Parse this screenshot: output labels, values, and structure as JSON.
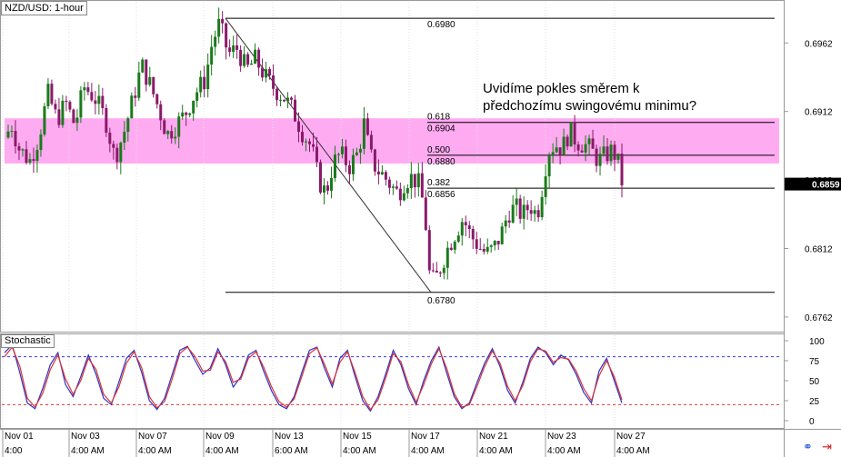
{
  "chart_data": [
    {
      "type": "candlestick",
      "title": "NZD/USD: 1-hour",
      "ylim": [
        0.6752,
        0.6992
      ],
      "y_ticks": [
        "0.6962",
        "0.6912",
        "0.6862",
        "0.6812",
        "0.6762"
      ],
      "y_tick_values": [
        0.6962,
        0.6912,
        0.6862,
        0.6812,
        0.6762
      ],
      "current_price": "0.6859",
      "current_value": 0.6859,
      "x_ticks_row1": [
        "Nov 01",
        "Nov 03",
        "Nov 07",
        "Nov 09",
        "Nov 13",
        "Nov 15",
        "Nov 17",
        "Nov 21",
        "Nov 23",
        "Nov 27"
      ],
      "x_ticks_row2": [
        "4:00",
        "4:00 AM",
        "4:00 AM",
        "4:00 AM",
        "6:00 AM",
        "4:00 AM",
        "4:00 AM",
        "4:00 AM",
        "4:00 AM",
        "4:00 AM"
      ],
      "colors": {
        "up": "#1a7a1a",
        "down": "#8a1a6a",
        "zone": "#ff9cf0"
      },
      "fibonacci": {
        "high": "0.6980",
        "low": "0.6780",
        "high_value": 0.698,
        "low_value": 0.678,
        "levels": [
          {
            "ratio": "0.618",
            "price": "0.6904",
            "value": 0.6904
          },
          {
            "ratio": "0.500",
            "price": "0.6880",
            "value": 0.688
          },
          {
            "ratio": "0.382",
            "price": "0.6856",
            "value": 0.6856
          }
        ]
      },
      "resistance_zone": [
        0.6874,
        0.6907
      ],
      "annotation": [
        "Uvidíme pokles směrem k",
        "předchozímu swingovému minimu?"
      ],
      "path": [
        [
          0,
          0.6893
        ],
        [
          8,
          0.6902
        ],
        [
          16,
          0.6885
        ],
        [
          28,
          0.6876
        ],
        [
          38,
          0.6893
        ],
        [
          48,
          0.6925
        ],
        [
          58,
          0.6906
        ],
        [
          68,
          0.6918
        ],
        [
          78,
          0.6902
        ],
        [
          88,
          0.693
        ],
        [
          100,
          0.6922
        ],
        [
          112,
          0.6906
        ],
        [
          122,
          0.6878
        ],
        [
          132,
          0.6896
        ],
        [
          142,
          0.692
        ],
        [
          152,
          0.6946
        ],
        [
          162,
          0.693
        ],
        [
          172,
          0.6912
        ],
        [
          180,
          0.6895
        ],
        [
          190,
          0.6902
        ],
        [
          200,
          0.691
        ],
        [
          210,
          0.6924
        ],
        [
          222,
          0.6935
        ],
        [
          230,
          0.6962
        ],
        [
          238,
          0.6976
        ],
        [
          248,
          0.6954
        ],
        [
          258,
          0.6958
        ],
        [
          268,
          0.6942
        ],
        [
          278,
          0.695
        ],
        [
          290,
          0.6936
        ],
        [
          300,
          0.6928
        ],
        [
          310,
          0.6922
        ],
        [
          320,
          0.6912
        ],
        [
          330,
          0.6897
        ],
        [
          340,
          0.6886
        ],
        [
          348,
          0.6862
        ],
        [
          356,
          0.6852
        ],
        [
          364,
          0.6874
        ],
        [
          372,
          0.6881
        ],
        [
          382,
          0.6872
        ],
        [
          392,
          0.6882
        ],
        [
          398,
          0.6904
        ],
        [
          405,
          0.688
        ],
        [
          412,
          0.687
        ],
        [
          420,
          0.6865
        ],
        [
          428,
          0.6858
        ],
        [
          436,
          0.6852
        ],
        [
          444,
          0.6862
        ],
        [
          452,
          0.6864
        ],
        [
          460,
          0.6858
        ],
        [
          466,
          0.6836
        ],
        [
          470,
          0.6795
        ],
        [
          476,
          0.6787
        ],
        [
          484,
          0.68
        ],
        [
          492,
          0.6814
        ],
        [
          500,
          0.6824
        ],
        [
          508,
          0.6834
        ],
        [
          516,
          0.6822
        ],
        [
          526,
          0.6813
        ],
        [
          534,
          0.6808
        ],
        [
          542,
          0.6812
        ],
        [
          550,
          0.6822
        ],
        [
          558,
          0.6838
        ],
        [
          566,
          0.6842
        ],
        [
          574,
          0.6836
        ],
        [
          582,
          0.6844
        ],
        [
          590,
          0.6836
        ],
        [
          596,
          0.6858
        ],
        [
          602,
          0.6883
        ],
        [
          610,
          0.6888
        ],
        [
          618,
          0.6885
        ],
        [
          626,
          0.6898
        ],
        [
          634,
          0.689
        ],
        [
          642,
          0.6888
        ],
        [
          650,
          0.6884
        ],
        [
          658,
          0.6876
        ],
        [
          666,
          0.688
        ],
        [
          674,
          0.6884
        ],
        [
          680,
          0.6874
        ],
        [
          684,
          0.6861
        ]
      ]
    },
    {
      "type": "line",
      "title": "Stochastic",
      "ylim": [
        0,
        100
      ],
      "y_ticks": [
        "100",
        "75",
        "50",
        "25",
        "0"
      ],
      "y_tick_values": [
        100,
        75,
        50,
        25,
        0
      ],
      "levels": [
        80,
        20
      ],
      "series": [
        {
          "color": "#2a33cc",
          "values": [
            85,
            95,
            60,
            22,
            15,
            40,
            70,
            85,
            45,
            30,
            55,
            82,
            58,
            28,
            20,
            48,
            78,
            88,
            60,
            25,
            14,
            28,
            58,
            88,
            93,
            75,
            58,
            66,
            90,
            70,
            42,
            55,
            82,
            88,
            62,
            38,
            20,
            15,
            30,
            60,
            88,
            92,
            65,
            42,
            78,
            88,
            55,
            25,
            12,
            30,
            58,
            88,
            70,
            40,
            20,
            50,
            75,
            92,
            60,
            30,
            15,
            22,
            48,
            72,
            90,
            68,
            38,
            22,
            48,
            78,
            92,
            85,
            70,
            82,
            76,
            58,
            35,
            22,
            62,
            78,
            50,
            22
          ]
        },
        {
          "color": "#dd3333",
          "values": [
            80,
            92,
            68,
            28,
            17,
            34,
            64,
            82,
            52,
            33,
            50,
            78,
            64,
            33,
            22,
            42,
            72,
            86,
            66,
            30,
            16,
            24,
            52,
            84,
            92,
            80,
            62,
            63,
            86,
            74,
            48,
            52,
            78,
            86,
            67,
            43,
            24,
            17,
            27,
            55,
            84,
            91,
            70,
            46,
            73,
            86,
            60,
            30,
            14,
            26,
            53,
            84,
            74,
            45,
            23,
            45,
            71,
            90,
            66,
            34,
            17,
            20,
            43,
            68,
            87,
            72,
            43,
            25,
            44,
            74,
            90,
            87,
            73,
            79,
            77,
            62,
            40,
            25,
            56,
            75,
            55,
            26
          ]
        }
      ]
    }
  ]
}
